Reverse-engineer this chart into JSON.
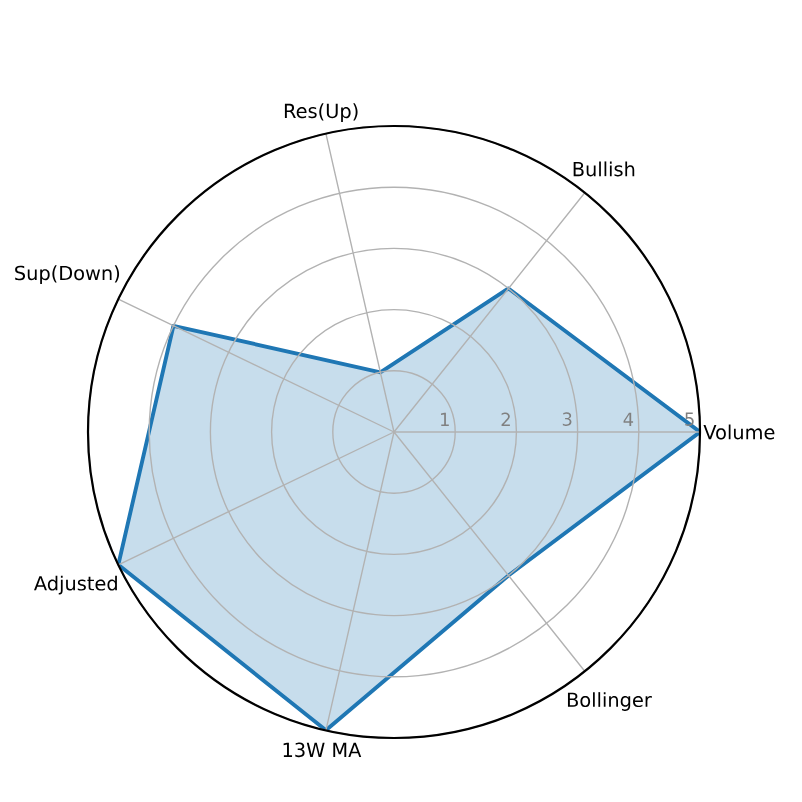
{
  "chart_data": {
    "type": "radar",
    "categories": [
      "Res(Up)",
      "Bullish",
      "Volume",
      "Bollinger",
      "13W MA",
      "Adjusted",
      "Sup(Down)"
    ],
    "series": [
      {
        "color": "#1f77b4",
        "values": [
          1,
          3,
          5,
          3,
          5,
          5,
          4
        ]
      }
    ],
    "ylim": [
      0,
      5
    ],
    "yticks": [
      1,
      2,
      3,
      4,
      5
    ],
    "grid": true
  }
}
